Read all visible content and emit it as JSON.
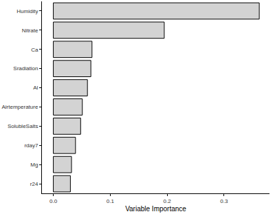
{
  "chart_data": {
    "type": "bar",
    "orientation": "horizontal",
    "x_label": "Variable Importance",
    "categories": [
      "Humidity",
      "Nitrate",
      "Ca",
      "Sradiation",
      "Al",
      "Airtemperature",
      "SolubleSalts",
      "rday7",
      "Mg",
      "r24"
    ],
    "values": [
      0.362,
      0.195,
      0.068,
      0.066,
      0.06,
      0.051,
      0.048,
      0.039,
      0.032,
      0.03
    ],
    "color": "#d3d3d3",
    "xlim": [
      -0.02,
      0.38
    ],
    "xticks": [
      {
        "value": 0,
        "label": "0.0"
      },
      0.1,
      0.2,
      0.3
    ],
    "grid": false
  }
}
